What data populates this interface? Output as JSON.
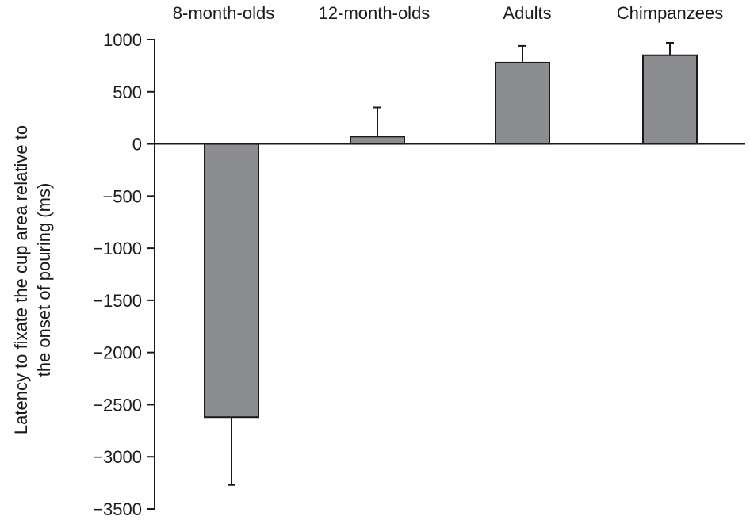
{
  "chart_data": {
    "type": "bar",
    "categories": [
      "8-month-olds",
      "12-month-olds",
      "Adults",
      "Chimpanzees"
    ],
    "values": [
      -2620,
      70,
      780,
      850
    ],
    "error_bars": [
      -650,
      280,
      160,
      120
    ],
    "ylabel_lines": [
      "Latency to fixate the cup area relative to",
      "the onset of pouring (ms)"
    ],
    "ylim": [
      -3500,
      1000
    ],
    "yticks": [
      1000,
      500,
      0,
      -500,
      -1000,
      -1500,
      -2000,
      -2500,
      -3000,
      -3500
    ],
    "ytick_labels": [
      "1000",
      "500",
      "0",
      "−500",
      "−1000",
      "−1500",
      "−2000",
      "−2500",
      "−3000",
      "−3500"
    ],
    "category_labels_position": "top",
    "bar_color": "#8c8d90",
    "grid": false
  }
}
